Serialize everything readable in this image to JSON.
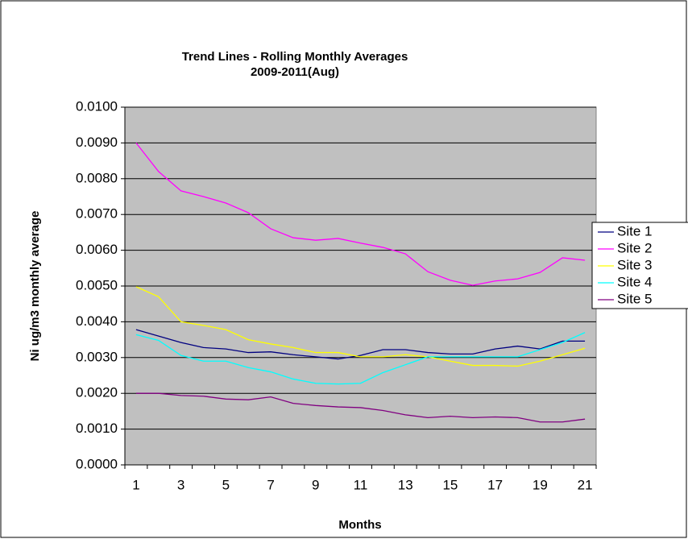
{
  "chart_data": {
    "type": "line",
    "title": "Trend Lines - Rolling Monthly Averages",
    "subtitle": "2009-2011(Aug)",
    "x_label": "Months",
    "y_label": "Ni ug/m3 monthly average",
    "categories": [
      1,
      null,
      3,
      null,
      5,
      null,
      7,
      null,
      9,
      null,
      11,
      null,
      13,
      null,
      15,
      null,
      17,
      null,
      19,
      null,
      21
    ],
    "ylim": [
      0,
      0.01
    ],
    "yticks": [
      {
        "value": 0,
        "label": "0.0000"
      },
      {
        "value": 0.001,
        "label": "0.0010"
      },
      {
        "value": 0.002,
        "label": "0.0020"
      },
      {
        "value": 0.003,
        "label": "0.0030"
      },
      {
        "value": 0.004,
        "label": "0.0040"
      },
      {
        "value": 0.005,
        "label": "0.0050"
      },
      {
        "value": 0.006,
        "label": "0.0060"
      },
      {
        "value": 0.007,
        "label": "0.0070"
      },
      {
        "value": 0.008,
        "label": "0.0080"
      },
      {
        "value": 0.009,
        "label": "0.0090"
      },
      {
        "value": 0.01,
        "label": "0.0100"
      }
    ],
    "grid": true,
    "legend": "right",
    "series": [
      {
        "name": "Site 1",
        "color": "#000080",
        "values": [
          0.00378,
          0.0036,
          0.00342,
          0.00328,
          0.00324,
          0.00314,
          0.00316,
          0.00308,
          0.00302,
          0.00296,
          0.00306,
          0.00322,
          0.00322,
          0.00314,
          0.0031,
          0.0031,
          0.00324,
          0.00332,
          0.00324,
          0.00346,
          0.00346
        ]
      },
      {
        "name": "Site 2",
        "color": "#ff00ff",
        "values": [
          0.009,
          0.0082,
          0.00766,
          0.0075,
          0.00732,
          0.00705,
          0.0066,
          0.00635,
          0.00628,
          0.00633,
          0.0062,
          0.00608,
          0.0059,
          0.0054,
          0.00516,
          0.00502,
          0.00514,
          0.0052,
          0.00538,
          0.00579,
          0.00572
        ]
      },
      {
        "name": "Site 3",
        "color": "#ffff00",
        "values": [
          0.00498,
          0.0047,
          0.004,
          0.0039,
          0.00378,
          0.0035,
          0.00338,
          0.00328,
          0.00314,
          0.00314,
          0.00302,
          0.00302,
          0.00308,
          0.00302,
          0.0029,
          0.00278,
          0.00278,
          0.00276,
          0.0029,
          0.00308,
          0.00326
        ]
      },
      {
        "name": "Site 4",
        "color": "#00ffff",
        "values": [
          0.00364,
          0.00348,
          0.00306,
          0.0029,
          0.0029,
          0.00272,
          0.0026,
          0.0024,
          0.00228,
          0.00226,
          0.00228,
          0.00258,
          0.0028,
          0.00302,
          0.00302,
          0.00302,
          0.00302,
          0.00302,
          0.00322,
          0.00342,
          0.0037
        ]
      },
      {
        "name": "Site 5",
        "color": "#800080",
        "values": [
          0.002,
          0.002,
          0.00194,
          0.00192,
          0.00184,
          0.00182,
          0.0019,
          0.00172,
          0.00166,
          0.00162,
          0.0016,
          0.00152,
          0.0014,
          0.00132,
          0.00136,
          0.00132,
          0.00134,
          0.00132,
          0.0012,
          0.0012,
          0.00128
        ]
      }
    ]
  }
}
